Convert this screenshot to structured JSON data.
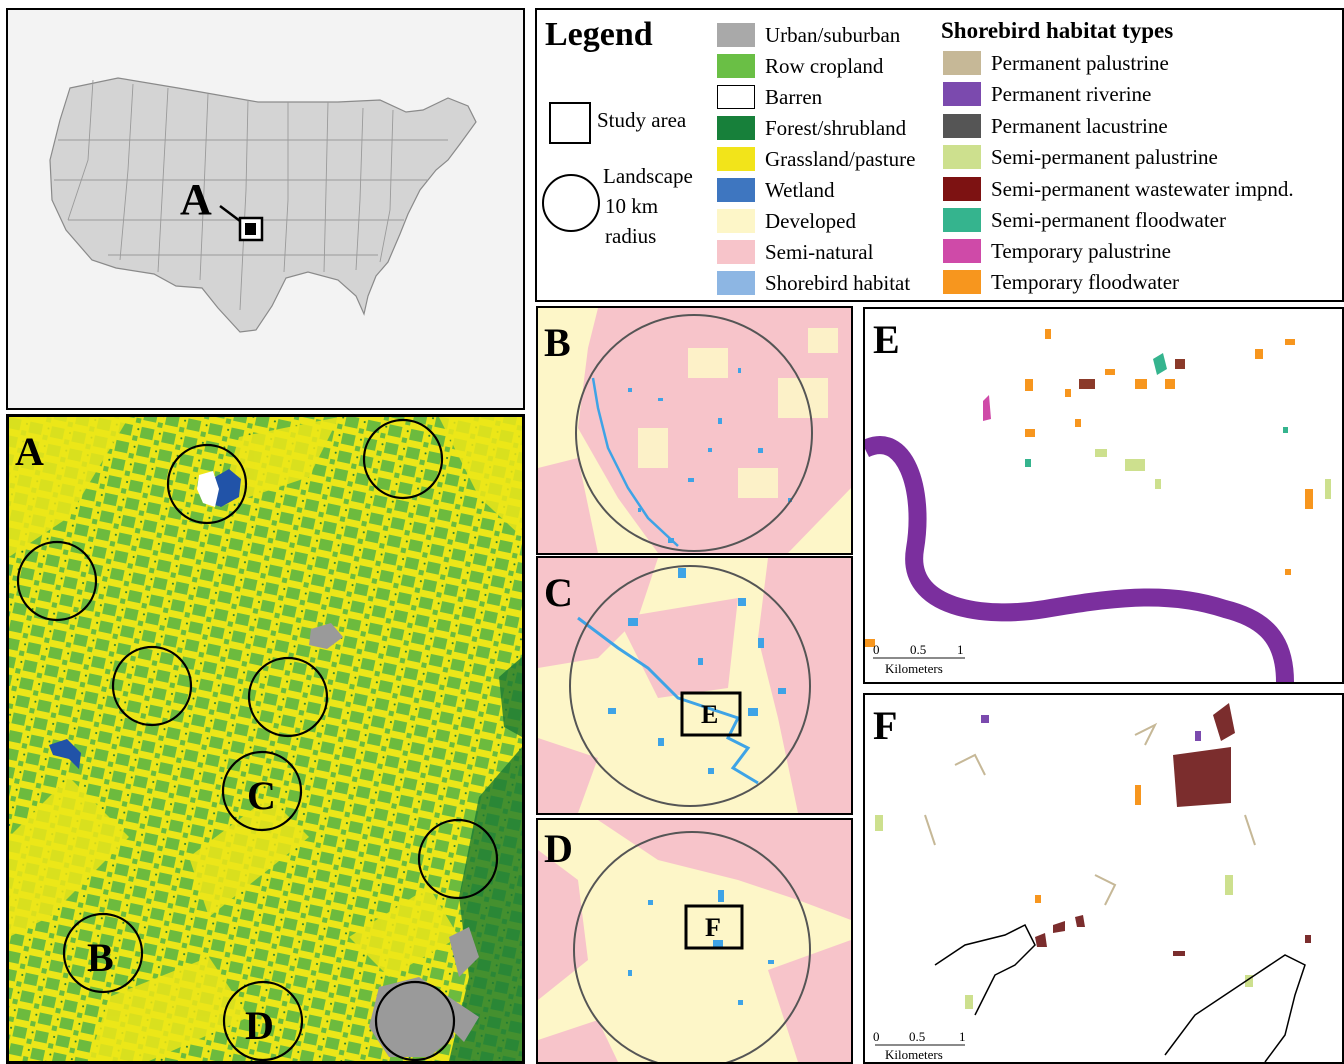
{
  "usmap": {
    "label": "A"
  },
  "legend": {
    "title": "Legend",
    "study_area": "Study area",
    "landscape_lines": [
      "Landscape",
      "10 km",
      "radius"
    ],
    "land_cover": [
      {
        "label": "Urban/suburban",
        "color": "#a9a9a9"
      },
      {
        "label": "Row cropland",
        "color": "#6abf45"
      },
      {
        "label": "Barren",
        "color": "#ffffff"
      },
      {
        "label": "Forest/shrubland",
        "color": "#17803a"
      },
      {
        "label": "Grassland/pasture",
        "color": "#f2e41a"
      },
      {
        "label": "Wetland",
        "color": "#3e76c0"
      },
      {
        "label": "Developed",
        "color": "#fdf6c8"
      },
      {
        "label": "Semi-natural",
        "color": "#f7c4ca"
      },
      {
        "label": "Shorebird habitat",
        "color": "#8db6e3"
      }
    ],
    "habitat_title": "Shorebird habitat types",
    "habitat_types": [
      {
        "label": "Permanent palustrine",
        "color": "#c6b897"
      },
      {
        "label": "Permanent riverine",
        "color": "#7b4aae"
      },
      {
        "label": "Permanent lacustrine",
        "color": "#555555"
      },
      {
        "label": "Semi-permanent palustrine",
        "color": "#cde08e"
      },
      {
        "label": "Semi-permanent wastewater impnd.",
        "color": "#7d1212"
      },
      {
        "label": "Semi-permanent floodwater",
        "color": "#35b48e"
      },
      {
        "label": "Temporary palustrine",
        "color": "#cf4aa8"
      },
      {
        "label": "Temporary floodwater",
        "color": "#f7961e"
      }
    ]
  },
  "panels": {
    "A": {
      "label": "A",
      "circle_labels": [
        "B",
        "C",
        "D"
      ]
    },
    "B": {
      "label": "B"
    },
    "C": {
      "label": "C",
      "box_label": "E"
    },
    "D": {
      "label": "D",
      "box_label": "F"
    },
    "E": {
      "label": "E",
      "scale": {
        "ticks": [
          "0",
          "0.5",
          "1"
        ],
        "unit": "Kilometers"
      }
    },
    "F": {
      "label": "F",
      "scale": {
        "ticks": [
          "0",
          "0.5",
          "1"
        ],
        "unit": "Kilometers"
      }
    }
  }
}
